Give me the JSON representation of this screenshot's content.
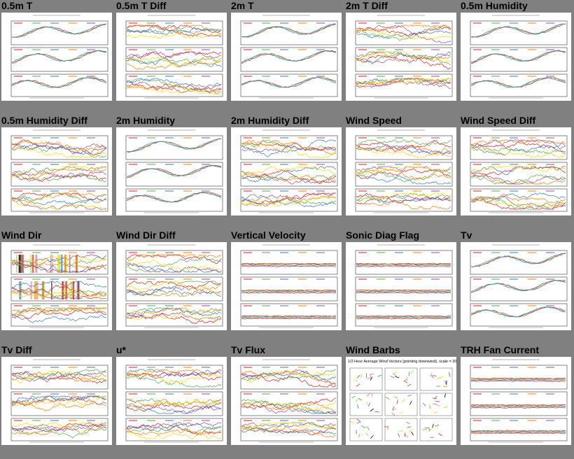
{
  "page": {
    "background": "#808080"
  },
  "series_colors": [
    "#e41a1c",
    "#4daf4a",
    "#377eb8",
    "#ff7f00",
    "#984ea3",
    "#ffd700",
    "#000000",
    "#a65628",
    "#f781bf",
    "#7fff00"
  ],
  "tiles": [
    {
      "title": "0.5m T",
      "style": "smooth"
    },
    {
      "title": "0.5m T Diff",
      "style": "noisy"
    },
    {
      "title": "2m T",
      "style": "smooth"
    },
    {
      "title": "2m T Diff",
      "style": "noisy"
    },
    {
      "title": "0.5m Humidity",
      "style": "smooth"
    },
    {
      "title": "0.5m Humidity Diff",
      "style": "noisy"
    },
    {
      "title": "2m Humidity",
      "style": "smooth"
    },
    {
      "title": "2m Humidity Diff",
      "style": "noisy"
    },
    {
      "title": "Wind Speed",
      "style": "noisy"
    },
    {
      "title": "Wind Speed Diff",
      "style": "noisy"
    },
    {
      "title": "Wind Dir",
      "style": "bars"
    },
    {
      "title": "Wind Dir Diff",
      "style": "noisy"
    },
    {
      "title": "Vertical Velocity",
      "style": "flat"
    },
    {
      "title": "Sonic Diag Flag",
      "style": "flat"
    },
    {
      "title": "Tv",
      "style": "smooth"
    },
    {
      "title": "Tv Diff",
      "style": "noisy"
    },
    {
      "title": "u*",
      "style": "noisy"
    },
    {
      "title": "Tv Flux",
      "style": "noisy"
    },
    {
      "title": "Wind Barbs",
      "style": "barbs",
      "header": "1/2 Hour Average Wind Vectors (pointing downwind), scale = 20"
    },
    {
      "title": "TRH Fan Current",
      "style": "flat"
    }
  ]
}
